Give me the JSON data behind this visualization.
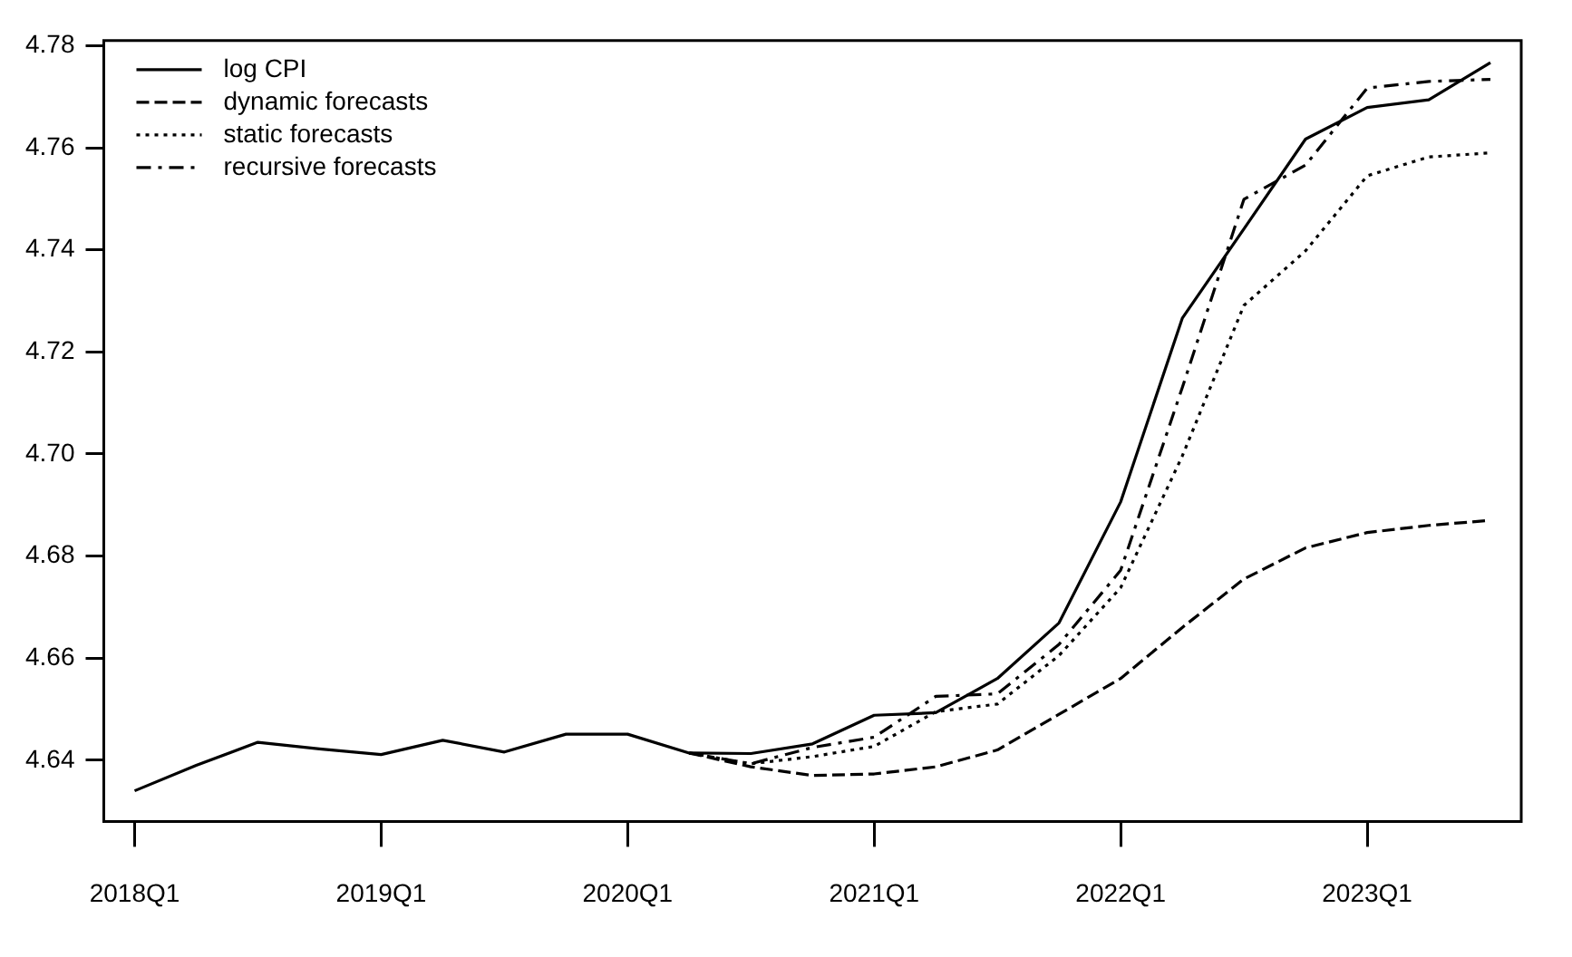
{
  "chart_data": {
    "type": "line",
    "categories": [
      "2018Q1",
      null,
      null,
      null,
      "2019Q1",
      null,
      null,
      null,
      "2020Q1",
      null,
      null,
      null,
      "2021Q1",
      null,
      null,
      null,
      "2022Q1",
      null,
      null,
      null,
      "2023Q1",
      null,
      null
    ],
    "series": [
      {
        "name": "log CPI",
        "color": "#000000",
        "line_style": "solid",
        "values": [
          4.634,
          4.639,
          4.6435,
          4.6422,
          4.6411,
          4.6439,
          4.6416,
          4.6451,
          4.6451,
          4.6414,
          4.6413,
          4.6432,
          4.6488,
          4.6493,
          4.656,
          4.6669,
          4.6906,
          4.7266,
          4.7441,
          4.7617,
          4.7679,
          4.7694,
          4.7767
        ]
      },
      {
        "name": "dynamic forecasts",
        "color": "#000000",
        "line_style": "dashed",
        "values": [
          null,
          null,
          null,
          null,
          null,
          null,
          null,
          null,
          null,
          4.6414,
          4.6387,
          4.637,
          4.6373,
          4.6387,
          4.642,
          4.649,
          4.656,
          4.666,
          4.6755,
          4.6816,
          4.6846,
          4.686,
          4.687
        ]
      },
      {
        "name": "static forecasts",
        "color": "#000000",
        "line_style": "dotted",
        "values": [
          null,
          null,
          null,
          null,
          null,
          null,
          null,
          null,
          null,
          4.6414,
          4.6393,
          4.6407,
          4.6427,
          4.6495,
          4.651,
          4.6605,
          4.6738,
          4.6996,
          4.7291,
          4.7398,
          4.7545,
          4.7582,
          4.759
        ]
      },
      {
        "name": "recursive forecasts",
        "color": "#000000",
        "line_style": "dashdot",
        "values": [
          null,
          null,
          null,
          null,
          null,
          null,
          null,
          null,
          null,
          4.6414,
          4.6393,
          4.6425,
          4.6445,
          4.6525,
          4.653,
          4.6627,
          4.6772,
          4.713,
          4.7499,
          4.7566,
          4.7717,
          4.773,
          4.7734
        ]
      }
    ],
    "ylim": [
      4.628,
      4.781
    ],
    "yticks": [
      4.64,
      4.66,
      4.68,
      {
        "value": 4.7,
        "label": "4.70"
      },
      4.72,
      4.74,
      4.76,
      4.78
    ],
    "grid": false,
    "legend": "top left",
    "marker": "none"
  }
}
